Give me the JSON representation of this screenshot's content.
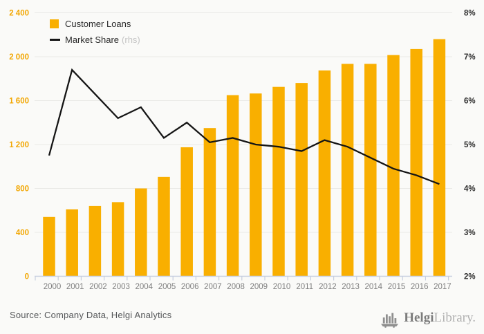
{
  "chart_data": {
    "type": "bar+line",
    "title": "",
    "categories": [
      "2000",
      "2001",
      "2002",
      "2003",
      "2004",
      "2005",
      "2006",
      "2007",
      "2008",
      "2009",
      "2010",
      "2011",
      "2012",
      "2013",
      "2014",
      "2015",
      "2016",
      "2017"
    ],
    "series": [
      {
        "name": "Customer Loans",
        "type": "bar",
        "axis": "left",
        "color": "#F9AF00",
        "values": [
          540,
          610,
          640,
          675,
          800,
          905,
          1175,
          1350,
          1650,
          1665,
          1725,
          1760,
          1875,
          1935,
          1935,
          2015,
          2070,
          2160
        ]
      },
      {
        "name": "Market Share",
        "type": "line",
        "axis": "right",
        "color": "#151515",
        "values": [
          4.75,
          6.7,
          6.15,
          5.6,
          5.85,
          5.15,
          5.5,
          5.05,
          5.15,
          5.0,
          4.95,
          4.85,
          5.1,
          4.95,
          4.7,
          4.45,
          4.3,
          4.1
        ]
      }
    ],
    "left_axis": {
      "min": 0,
      "max": 2400,
      "tick_labels": [
        "0",
        "400",
        "800",
        "1 200",
        "1 600",
        "2 000",
        "2 400"
      ],
      "color": "#F2A703"
    },
    "right_axis": {
      "min": 2,
      "max": 8,
      "tick_labels": [
        "2%",
        "3%",
        "4%",
        "5%",
        "6%",
        "7%",
        "8%"
      ],
      "color": "#2E2E2E"
    },
    "grid": true,
    "grid_color": "#E9E9E6",
    "baseline_color": "#C6CEDF",
    "legend_position": "top-left"
  },
  "legend": {
    "bar_label": "Customer Loans",
    "line_label": "Market Share",
    "line_suffix": "(rhs)"
  },
  "footer": {
    "source": "Source: Company Data, Helgi Analytics",
    "logo_bold": "Helgi",
    "logo_light": "Library."
  }
}
